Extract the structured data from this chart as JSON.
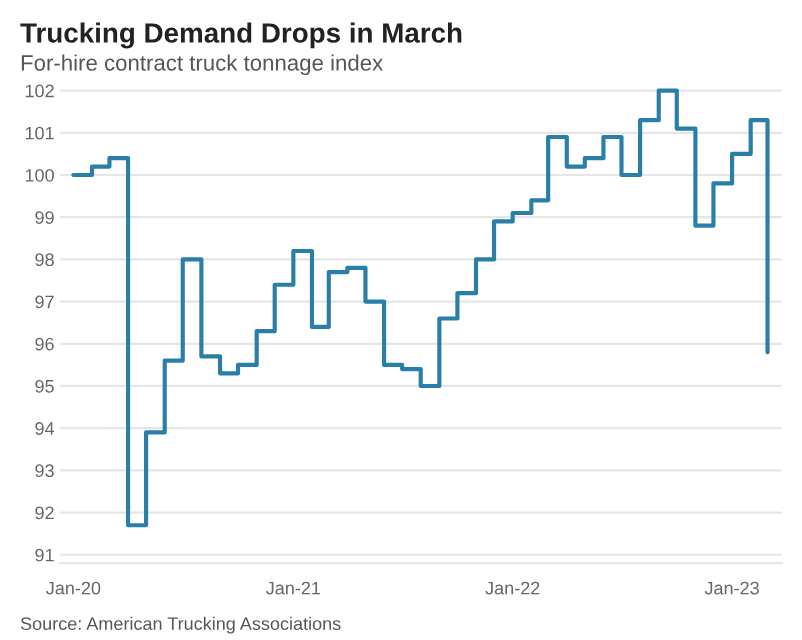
{
  "chart_data": {
    "type": "step",
    "title": "Trucking Demand Drops in March",
    "subtitle": "For-hire contract truck tonnage index",
    "annotations": [
      "Source: American Trucking Associations"
    ],
    "x": [
      "2020-01",
      "2020-02",
      "2020-03",
      "2020-04",
      "2020-05",
      "2020-06",
      "2020-07",
      "2020-08",
      "2020-09",
      "2020-10",
      "2020-11",
      "2020-12",
      "2021-01",
      "2021-02",
      "2021-03",
      "2021-04",
      "2021-05",
      "2021-06",
      "2021-07",
      "2021-08",
      "2021-09",
      "2021-10",
      "2021-11",
      "2021-12",
      "2022-01",
      "2022-02",
      "2022-03",
      "2022-04",
      "2022-05",
      "2022-06",
      "2022-07",
      "2022-08",
      "2022-09",
      "2022-10",
      "2022-11",
      "2022-12",
      "2023-01",
      "2023-02",
      "2023-03"
    ],
    "series": [
      {
        "color": "#2a7fa8",
        "values": [
          100.0,
          100.2,
          100.4,
          91.7,
          93.9,
          95.6,
          98.0,
          95.7,
          95.3,
          95.5,
          96.3,
          97.4,
          98.2,
          96.4,
          97.7,
          97.8,
          97.0,
          95.5,
          95.4,
          95.0,
          96.6,
          97.2,
          98.0,
          98.9,
          99.1,
          99.4,
          100.9,
          100.2,
          100.4,
          100.9,
          100.0,
          101.3,
          102.0,
          101.1,
          98.8,
          99.8,
          100.5,
          101.3,
          95.8
        ]
      }
    ],
    "xlim": [
      "2019-12-10",
      "2023-03-25"
    ],
    "xticks": [
      {
        "value": "2020-01",
        "label": "Jan-20"
      },
      {
        "value": "2021-01",
        "label": "Jan-21"
      },
      {
        "value": "2022-01",
        "label": "Jan-22"
      },
      {
        "value": "2023-01",
        "label": "Jan-23"
      }
    ],
    "ylim": [
      90.8,
      102.1
    ],
    "yticks": [
      91,
      92,
      93,
      94,
      95,
      96,
      97,
      98,
      99,
      100,
      101,
      102
    ],
    "grid": "y",
    "line_style": "solid"
  }
}
